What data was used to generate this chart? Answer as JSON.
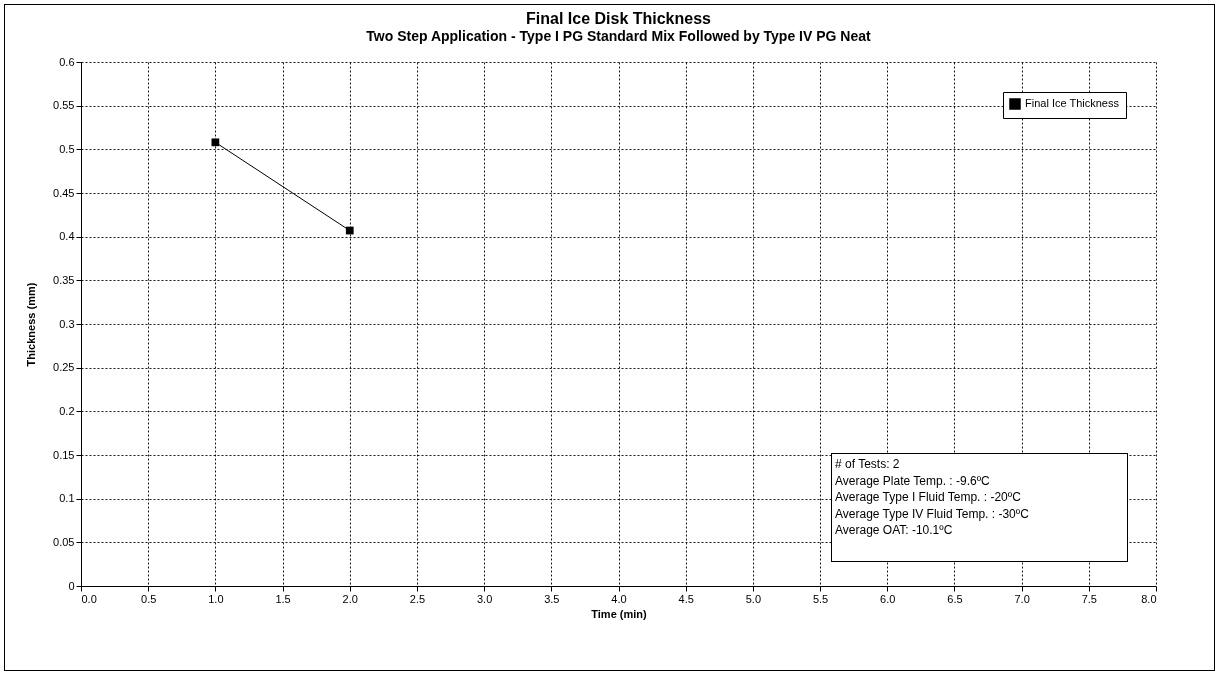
{
  "chart_data": {
    "type": "line",
    "title": "Final Ice Disk Thickness",
    "subtitle": "Two Step Application - Type I PG Standard Mix Followed by Type IV PG Neat",
    "xlabel": "Time (min)",
    "ylabel": "Thickness (mm)",
    "x": [
      1,
      2
    ],
    "series": [
      {
        "name": "Final Ice Thickness",
        "color": "#000000",
        "values": [
          0.508,
          0.407
        ]
      }
    ],
    "xlim": [
      0,
      8
    ],
    "ylim": [
      0,
      0.6
    ],
    "xticks": [
      {
        "value": 0,
        "label": "0.0"
      },
      {
        "value": 0.5,
        "label": "0.5"
      },
      {
        "value": 1,
        "label": "1.0"
      },
      {
        "value": 1.5,
        "label": "1.5"
      },
      {
        "value": 2,
        "label": "2.0"
      },
      {
        "value": 2.5,
        "label": "2.5"
      },
      {
        "value": 3,
        "label": "3.0"
      },
      {
        "value": 3.5,
        "label": "3.5"
      },
      {
        "value": 4,
        "label": "4.0"
      },
      {
        "value": 4.5,
        "label": "4.5"
      },
      {
        "value": 5,
        "label": "5.0"
      },
      {
        "value": 5.5,
        "label": "5.5"
      },
      {
        "value": 6,
        "label": "6.0"
      },
      {
        "value": 6.5,
        "label": "6.5"
      },
      {
        "value": 7,
        "label": "7.0"
      },
      {
        "value": 7.5,
        "label": "7.5"
      },
      {
        "value": 8,
        "label": "8.0"
      }
    ],
    "yticks": [
      0,
      0.05,
      0.1,
      0.15,
      0.2,
      0.25,
      0.3,
      0.35,
      0.4,
      0.45,
      0.5,
      0.55,
      0.6
    ],
    "annotations": [
      "# of Tests: 2",
      "Average Plate Temp. : -9.6ºC",
      "Average Type I Fluid Temp. : -20ºC",
      "Average Type IV Fluid Temp. : -30ºC",
      "Average OAT: -10.1ºC"
    ],
    "grid": true,
    "legend": "top right",
    "marker": "square",
    "line_style": "solid"
  }
}
